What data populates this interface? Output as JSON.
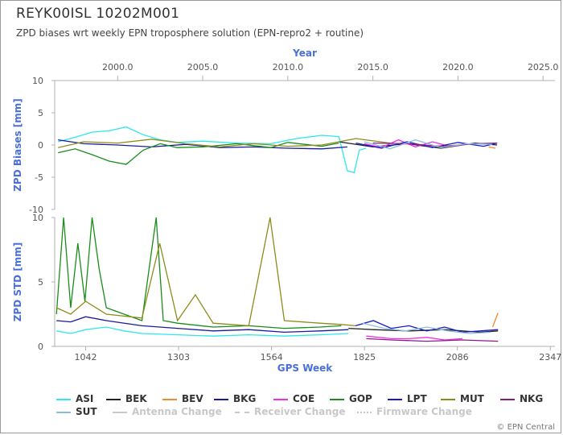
{
  "header": {
    "title": "REYK00ISL 10202M001",
    "subtitle": "ZPD biases wrt weekly EPN troposphere solution (EPN-repro2 + routine)"
  },
  "credit": "© EPN Central",
  "chart_data": [
    {
      "type": "line",
      "panel": "top",
      "title": "",
      "xlabel_top": "Year",
      "ylabel": "ZPD Biases [mm]",
      "ylim": [
        -10,
        10
      ],
      "yticks": [
        "10",
        "5",
        "0",
        "-5",
        "-10"
      ],
      "xlim_year": [
        1996.3,
        2025.7
      ],
      "year_ticks": [
        "2000.0",
        "2005.0",
        "2010.0",
        "2015.0",
        "2020.0",
        "2025.0"
      ],
      "grid": false,
      "series": [
        {
          "name": "ASI",
          "color": "#2ee6ee",
          "x": [
            1996.5,
            1997.5,
            1998.5,
            1999.5,
            2000.5,
            2001.5,
            2002.5,
            2003.5,
            2005.0,
            2007.0,
            2009.0,
            2010.5,
            2012.0,
            2013.0,
            2013.5,
            2013.9,
            2014.2,
            2014.6
          ],
          "y": [
            0.5,
            1.2,
            2.0,
            2.2,
            2.8,
            1.6,
            0.8,
            0.4,
            0.6,
            0.3,
            0.2,
            1.0,
            1.5,
            1.3,
            -4.0,
            -4.3,
            -0.8,
            -0.5
          ]
        },
        {
          "name": "BEK",
          "color": "#222222",
          "x": [
            2013.0,
            2015.0,
            2017.0,
            2019.0,
            2021.0,
            2022.3
          ],
          "y": [
            0.5,
            -0.3,
            0.2,
            -0.5,
            0.3,
            0.0
          ]
        },
        {
          "name": "BEV",
          "color": "#ee8c2e",
          "x": [
            2021.8,
            2022.2
          ],
          "y": [
            -0.3,
            -0.5
          ]
        },
        {
          "name": "BKG",
          "color": "#1a1a9e",
          "x": [
            1996.5,
            1998.0,
            2000.0,
            2002.0,
            2004.0,
            2006.0,
            2008.0,
            2010.0,
            2012.0,
            2013.5
          ],
          "y": [
            0.8,
            0.2,
            0.0,
            -0.3,
            0.1,
            -0.4,
            -0.3,
            -0.5,
            -0.6,
            -0.3
          ]
        },
        {
          "name": "COE",
          "color": "#ee2ee6",
          "x": [
            2014.5,
            2015.5,
            2016.5,
            2017.5,
            2018.5,
            2019.5,
            2020.5
          ],
          "y": [
            0.2,
            -0.4,
            0.8,
            -0.3,
            0.5,
            -0.2,
            0.1
          ]
        },
        {
          "name": "GOP",
          "color": "#1a8c1a",
          "x": [
            1996.5,
            1997.5,
            1998.5,
            1999.5,
            2000.5,
            2001.5,
            2002.5,
            2003.5,
            2005.0,
            2007.0,
            2009.0,
            2010.0,
            2012.0,
            2013.0
          ],
          "y": [
            -1.2,
            -0.6,
            -1.5,
            -2.5,
            -3.0,
            -0.8,
            0.2,
            -0.4,
            -0.3,
            0.2,
            -0.4,
            0.4,
            -0.2,
            0.3
          ]
        },
        {
          "name": "LPT",
          "color": "#1a1ac8",
          "x": [
            2014.0,
            2015.5,
            2017.0,
            2018.5,
            2020.0,
            2021.5,
            2022.3
          ],
          "y": [
            0.3,
            -0.5,
            0.5,
            -0.4,
            0.4,
            -0.2,
            0.3
          ]
        },
        {
          "name": "MUT",
          "color": "#8c8c1a",
          "x": [
            1996.5,
            1998.0,
            2000.0,
            2002.0,
            2004.0,
            2006.0,
            2008.0,
            2010.0,
            2012.0,
            2014.0,
            2016.0
          ],
          "y": [
            -0.4,
            0.5,
            0.3,
            0.9,
            0.2,
            -0.3,
            0.2,
            -0.2,
            0.0,
            1.0,
            0.3
          ]
        },
        {
          "name": "NKG",
          "color": "#8c1a8c",
          "x": [
            2015.0,
            2017.0,
            2019.0,
            2021.0,
            2022.3
          ],
          "y": [
            0.3,
            0.2,
            -0.2,
            0.2,
            0.3
          ]
        },
        {
          "name": "SUT",
          "color": "#8cbede",
          "x": [
            2014.5,
            2016.0,
            2017.5,
            2019.0,
            2020.5,
            2022.0
          ],
          "y": [
            0.5,
            -0.6,
            0.8,
            -0.4,
            0.2,
            0.1
          ]
        }
      ]
    },
    {
      "type": "line",
      "panel": "bottom",
      "title": "",
      "xlabel": "GPS Week",
      "ylabel": "ZPD STD [mm]",
      "ylim": [
        0,
        10
      ],
      "yticks": [
        "10",
        "5",
        "0"
      ],
      "xlim_week": [
        955,
        2360
      ],
      "week_ticks": [
        "1042",
        "1303",
        "1564",
        "1825",
        "2086",
        "2347"
      ],
      "grid": false,
      "series": [
        {
          "name": "ASI",
          "color": "#2ee6ee",
          "x": [
            960,
            1000,
            1042,
            1100,
            1150,
            1200,
            1300,
            1400,
            1500,
            1600,
            1700,
            1780
          ],
          "y": [
            1.2,
            1.0,
            1.3,
            1.5,
            1.2,
            1.0,
            0.9,
            0.8,
            0.9,
            0.8,
            0.9,
            1.0
          ]
        },
        {
          "name": "BEK",
          "color": "#222222",
          "x": [
            1780,
            1850,
            1950,
            2050,
            2150,
            2200
          ],
          "y": [
            1.4,
            1.3,
            1.2,
            1.3,
            1.1,
            1.2
          ]
        },
        {
          "name": "BEV",
          "color": "#ee8c2e",
          "x": [
            2185,
            2200
          ],
          "y": [
            1.5,
            2.6
          ]
        },
        {
          "name": "BKG",
          "color": "#1a1a9e",
          "x": [
            960,
            1000,
            1042,
            1100,
            1200,
            1300,
            1400,
            1500,
            1600,
            1700,
            1780
          ],
          "y": [
            2.0,
            1.9,
            2.3,
            2.0,
            1.6,
            1.4,
            1.2,
            1.3,
            1.1,
            1.2,
            1.3
          ]
        },
        {
          "name": "COE",
          "color": "#ee2ee6",
          "x": [
            1830,
            1900,
            1950,
            2000,
            2050,
            2100
          ],
          "y": [
            0.8,
            0.6,
            0.6,
            0.7,
            0.5,
            0.6
          ]
        },
        {
          "name": "GOP",
          "color": "#1a8c1a",
          "x": [
            960,
            980,
            1000,
            1020,
            1040,
            1060,
            1080,
            1100,
            1150,
            1200,
            1240,
            1260,
            1300,
            1400,
            1500,
            1600,
            1700,
            1760
          ],
          "y": [
            2.5,
            10.0,
            3.0,
            8.0,
            3.5,
            10.0,
            6.0,
            3.0,
            2.5,
            2.0,
            10.0,
            2.0,
            1.8,
            1.5,
            1.6,
            1.4,
            1.5,
            1.6
          ]
        },
        {
          "name": "LPT",
          "color": "#1a1ac8",
          "x": [
            1800,
            1850,
            1900,
            1950,
            2000,
            2050,
            2100,
            2150,
            2200
          ],
          "y": [
            1.6,
            2.0,
            1.4,
            1.6,
            1.2,
            1.5,
            1.1,
            1.2,
            1.3
          ]
        },
        {
          "name": "MUT",
          "color": "#8c8c1a",
          "x": [
            960,
            1000,
            1042,
            1100,
            1200,
            1250,
            1300,
            1350,
            1400,
            1500,
            1560,
            1600,
            1700,
            1760,
            1800
          ],
          "y": [
            3.0,
            2.5,
            3.5,
            2.5,
            2.2,
            8.0,
            2.0,
            4.0,
            1.8,
            1.6,
            10.0,
            2.0,
            1.8,
            1.7,
            1.6
          ]
        },
        {
          "name": "NKG",
          "color": "#8c1a8c",
          "x": [
            1830,
            1900,
            2000,
            2100,
            2200
          ],
          "y": [
            0.6,
            0.5,
            0.4,
            0.5,
            0.4
          ]
        },
        {
          "name": "SUT",
          "color": "#8cbede",
          "x": [
            1820,
            1880,
            1940,
            2000,
            2060,
            2120,
            2180
          ],
          "y": [
            1.8,
            1.4,
            1.2,
            1.5,
            1.2,
            1.0,
            1.1
          ]
        }
      ]
    }
  ],
  "legend": [
    {
      "label": "ASI",
      "color": "#2ee6ee",
      "style": "solid",
      "active": true
    },
    {
      "label": "BEK",
      "color": "#222222",
      "style": "solid",
      "active": true
    },
    {
      "label": "BEV",
      "color": "#ee8c2e",
      "style": "solid",
      "active": true
    },
    {
      "label": "BKG",
      "color": "#1a1a9e",
      "style": "solid",
      "active": true
    },
    {
      "label": "COE",
      "color": "#ee2ee6",
      "style": "solid",
      "active": true
    },
    {
      "label": "GOP",
      "color": "#1a8c1a",
      "style": "solid",
      "active": true
    },
    {
      "label": "LPT",
      "color": "#1a1ac8",
      "style": "solid",
      "active": true
    },
    {
      "label": "MUT",
      "color": "#8c8c1a",
      "style": "solid",
      "active": true
    },
    {
      "label": "NKG",
      "color": "#8c1a8c",
      "style": "solid",
      "active": true
    },
    {
      "label": "SUT",
      "color": "#8cbede",
      "style": "solid",
      "active": true
    },
    {
      "label": "Antenna Change",
      "color": "#c8c8c8",
      "style": "solid",
      "active": false
    },
    {
      "label": "Receiver Change",
      "color": "#c8c8c8",
      "style": "dashed",
      "active": false
    },
    {
      "label": "Firmware Change",
      "color": "#c8c8c8",
      "style": "dotted",
      "active": false
    }
  ],
  "colors": {
    "axis_label": "#4a6fd8",
    "axis": "#b0b0b0"
  }
}
